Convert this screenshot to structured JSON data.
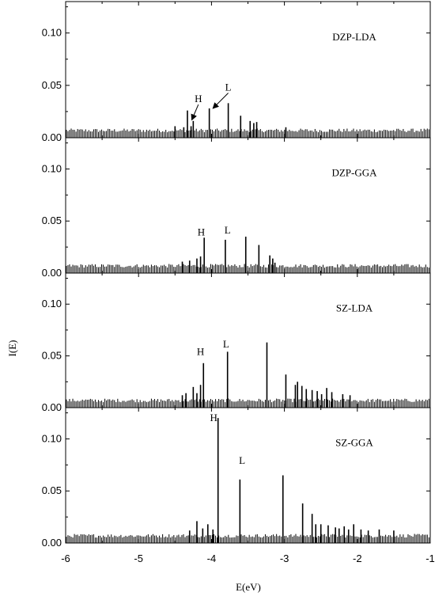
{
  "chart_data": {
    "type": "bar",
    "xlabel": "E(eV)",
    "ylabel": "I(E)",
    "xlim": [
      -6,
      -1
    ],
    "xticks": [
      "-6",
      "-5",
      "-4",
      "-3",
      "-2",
      "-1"
    ],
    "ylim": [
      0,
      0.13
    ],
    "yticks": [
      "0.00",
      "0.05",
      "0.10"
    ],
    "panels": [
      {
        "label": "DZP-LDA",
        "noise": {
          "from": -6,
          "to": -1,
          "level": 0.007
        },
        "peaks": [
          {
            "x": -4.5,
            "y": 0.011
          },
          {
            "x": -4.38,
            "y": 0.01
          },
          {
            "x": -4.33,
            "y": 0.026
          },
          {
            "x": -4.28,
            "y": 0.011
          },
          {
            "x": -4.25,
            "y": 0.016
          },
          {
            "x": -4.03,
            "y": 0.028
          },
          {
            "x": -3.77,
            "y": 0.033
          },
          {
            "x": -3.6,
            "y": 0.021
          },
          {
            "x": -3.47,
            "y": 0.016
          },
          {
            "x": -3.42,
            "y": 0.014
          },
          {
            "x": -3.38,
            "y": 0.015
          },
          {
            "x": -2.98,
            "y": 0.01
          }
        ],
        "annotations": [
          {
            "text": "H",
            "x": -4.18,
            "y": 0.034,
            "arrow_to": {
              "x": -4.27,
              "y": 0.017
            }
          },
          {
            "text": "L",
            "x": -3.77,
            "y": 0.045,
            "arrow_to": {
              "x": -3.98,
              "y": 0.028
            }
          }
        ]
      },
      {
        "label": "DZP-GGA",
        "noise": {
          "from": -6,
          "to": -1,
          "level": 0.007
        },
        "peaks": [
          {
            "x": -4.4,
            "y": 0.011
          },
          {
            "x": -4.3,
            "y": 0.012
          },
          {
            "x": -4.2,
            "y": 0.014
          },
          {
            "x": -4.15,
            "y": 0.016
          },
          {
            "x": -4.1,
            "y": 0.034
          },
          {
            "x": -3.81,
            "y": 0.032
          },
          {
            "x": -3.53,
            "y": 0.035
          },
          {
            "x": -3.35,
            "y": 0.027
          },
          {
            "x": -3.2,
            "y": 0.017
          },
          {
            "x": -3.16,
            "y": 0.014
          },
          {
            "x": -3.13,
            "y": 0.01
          }
        ],
        "annotations": [
          {
            "text": "H",
            "x": -4.14,
            "y": 0.036
          },
          {
            "text": "L",
            "x": -3.78,
            "y": 0.038
          }
        ]
      },
      {
        "label": "SZ-LDA",
        "noise": {
          "from": -6,
          "to": -1,
          "level": 0.007
        },
        "peaks": [
          {
            "x": -4.4,
            "y": 0.012
          },
          {
            "x": -4.35,
            "y": 0.014
          },
          {
            "x": -4.25,
            "y": 0.02
          },
          {
            "x": -4.2,
            "y": 0.014
          },
          {
            "x": -4.15,
            "y": 0.022
          },
          {
            "x": -4.11,
            "y": 0.043
          },
          {
            "x": -3.78,
            "y": 0.054
          },
          {
            "x": -3.24,
            "y": 0.063
          },
          {
            "x": -2.98,
            "y": 0.032
          },
          {
            "x": -2.85,
            "y": 0.022
          },
          {
            "x": -2.82,
            "y": 0.025
          },
          {
            "x": -2.76,
            "y": 0.021
          },
          {
            "x": -2.7,
            "y": 0.018
          },
          {
            "x": -2.62,
            "y": 0.017
          },
          {
            "x": -2.55,
            "y": 0.016
          },
          {
            "x": -2.49,
            "y": 0.013
          },
          {
            "x": -2.42,
            "y": 0.019
          },
          {
            "x": -2.35,
            "y": 0.015
          },
          {
            "x": -2.2,
            "y": 0.013
          },
          {
            "x": -2.1,
            "y": 0.012
          }
        ],
        "annotations": [
          {
            "text": "H",
            "x": -4.15,
            "y": 0.051
          },
          {
            "text": "L",
            "x": -3.8,
            "y": 0.058
          }
        ]
      },
      {
        "label": "SZ-GGA",
        "noise": {
          "from": -6,
          "to": -1,
          "level": 0.007
        },
        "peaks": [
          {
            "x": -4.3,
            "y": 0.012
          },
          {
            "x": -4.2,
            "y": 0.021
          },
          {
            "x": -4.12,
            "y": 0.014
          },
          {
            "x": -4.05,
            "y": 0.018
          },
          {
            "x": -3.98,
            "y": 0.013
          },
          {
            "x": -3.91,
            "y": 0.12
          },
          {
            "x": -3.61,
            "y": 0.061
          },
          {
            "x": -3.02,
            "y": 0.065
          },
          {
            "x": -2.75,
            "y": 0.038
          },
          {
            "x": -2.62,
            "y": 0.028
          },
          {
            "x": -2.57,
            "y": 0.018
          },
          {
            "x": -2.5,
            "y": 0.018
          },
          {
            "x": -2.4,
            "y": 0.017
          },
          {
            "x": -2.3,
            "y": 0.015
          },
          {
            "x": -2.25,
            "y": 0.014
          },
          {
            "x": -2.18,
            "y": 0.016
          },
          {
            "x": -2.12,
            "y": 0.013
          },
          {
            "x": -2.05,
            "y": 0.018
          },
          {
            "x": -1.95,
            "y": 0.013
          },
          {
            "x": -1.85,
            "y": 0.012
          },
          {
            "x": -1.7,
            "y": 0.013
          },
          {
            "x": -1.5,
            "y": 0.012
          }
        ],
        "annotations": [
          {
            "text": "H",
            "x": -3.97,
            "y": 0.117
          },
          {
            "text": "L",
            "x": -3.58,
            "y": 0.076
          }
        ]
      }
    ]
  }
}
